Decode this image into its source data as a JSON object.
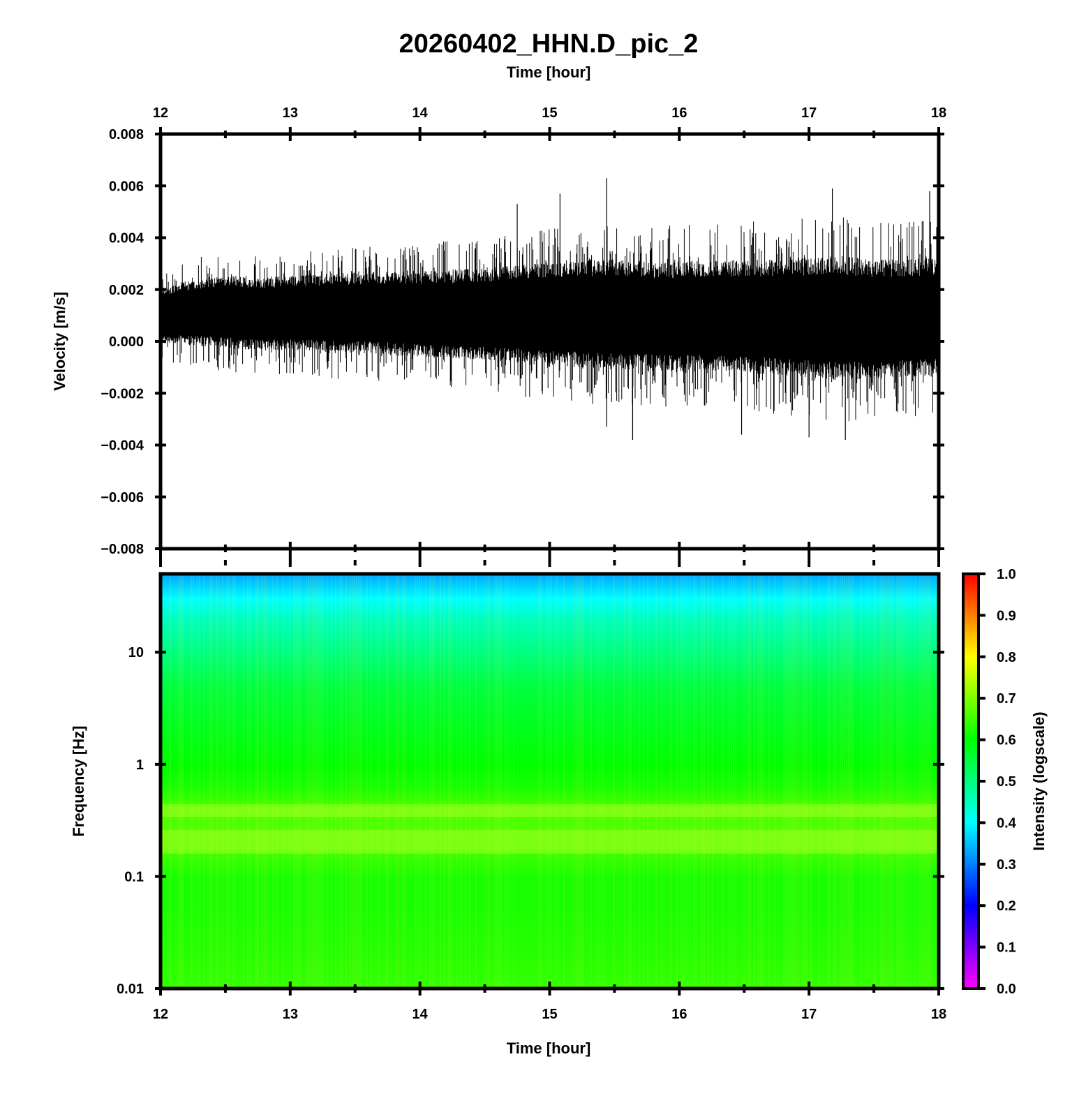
{
  "chart_data": [
    {
      "type": "line",
      "panel": "waveform",
      "title": "20260402_HHN.D_pic_2",
      "xlabel": "Time [hour]",
      "ylabel": "Velocity [m/s]",
      "xlim": [
        12,
        18
      ],
      "ylim": [
        -0.008,
        0.008
      ],
      "x_ticks": [
        "12",
        "13",
        "14",
        "15",
        "16",
        "17",
        "18"
      ],
      "y_ticks": [
        "0.008",
        "0.006",
        "0.004",
        "0.002",
        "0.000",
        "−0.002",
        "−0.004",
        "−0.006",
        "−0.008"
      ],
      "grid": false,
      "series": [
        {
          "color": "#000000",
          "x": [
            12.0,
            12.25,
            12.5,
            12.75,
            13.0,
            13.25,
            13.5,
            13.75,
            14.0,
            14.25,
            14.5,
            14.75,
            15.0,
            15.25,
            15.5,
            15.75,
            16.0,
            16.25,
            16.5,
            16.75,
            17.0,
            17.25,
            17.5,
            17.75,
            18.0
          ],
          "upper_envelope": [
            0.0028,
            0.0032,
            0.0035,
            0.0034,
            0.0035,
            0.0036,
            0.0037,
            0.0038,
            0.0038,
            0.0039,
            0.004,
            0.0042,
            0.0044,
            0.0045,
            0.0046,
            0.0044,
            0.0045,
            0.0046,
            0.0046,
            0.0047,
            0.0048,
            0.0049,
            0.0047,
            0.0047,
            0.0048
          ],
          "lower_envelope": [
            -0.0008,
            -0.001,
            -0.0012,
            -0.0013,
            -0.0013,
            -0.0014,
            -0.0015,
            -0.0016,
            -0.0017,
            -0.0018,
            -0.0019,
            -0.0021,
            -0.0023,
            -0.0024,
            -0.0025,
            -0.0025,
            -0.0026,
            -0.0026,
            -0.0027,
            -0.0028,
            -0.003,
            -0.0031,
            -0.003,
            -0.0029,
            -0.0029
          ],
          "peaks": [
            {
              "x": 15.44,
              "y": 0.0063
            },
            {
              "x": 17.18,
              "y": 0.0059
            },
            {
              "x": 17.93,
              "y": 0.0058
            },
            {
              "x": 15.08,
              "y": 0.0057
            },
            {
              "x": 14.75,
              "y": 0.0053
            },
            {
              "x": 15.44,
              "y": -0.0033
            },
            {
              "x": 15.64,
              "y": -0.0038
            },
            {
              "x": 17.28,
              "y": -0.0038
            },
            {
              "x": 17.0,
              "y": -0.0037
            },
            {
              "x": 16.48,
              "y": -0.0036
            }
          ]
        }
      ]
    },
    {
      "type": "heatmap",
      "panel": "spectrogram",
      "xlabel": "Time [hour]",
      "ylabel": "Frequency [Hz]",
      "xlim": [
        12,
        18
      ],
      "ylim": [
        0.01,
        50
      ],
      "y_scale": "log",
      "x_ticks": [
        "12",
        "13",
        "14",
        "15",
        "16",
        "17",
        "18"
      ],
      "y_ticks": [
        "0.01",
        "0.1",
        "1",
        "10"
      ],
      "colorbar": {
        "label": "Intensity (logscale)",
        "range": [
          0.0,
          1.0
        ],
        "ticks": [
          "0.0",
          "0.1",
          "0.2",
          "0.3",
          "0.4",
          "0.5",
          "0.6",
          "0.7",
          "0.8",
          "0.9",
          "1.0"
        ],
        "colormap": [
          "#ff00ff",
          "#0000ff",
          "#00ffff",
          "#00ff00",
          "#ffff00",
          "#ff0000"
        ]
      },
      "intensity_by_frequency": {
        "frequency_hz": [
          0.01,
          0.02,
          0.05,
          0.1,
          0.2,
          0.4,
          0.6,
          1,
          2,
          5,
          10,
          20,
          30,
          50
        ],
        "intensity": [
          0.64,
          0.63,
          0.62,
          0.62,
          0.66,
          0.66,
          0.62,
          0.6,
          0.58,
          0.55,
          0.5,
          0.45,
          0.4,
          0.33
        ]
      },
      "banding": "vertical time striping with brighter horizontal bands near 0.2 Hz and 0.4 Hz"
    }
  ]
}
